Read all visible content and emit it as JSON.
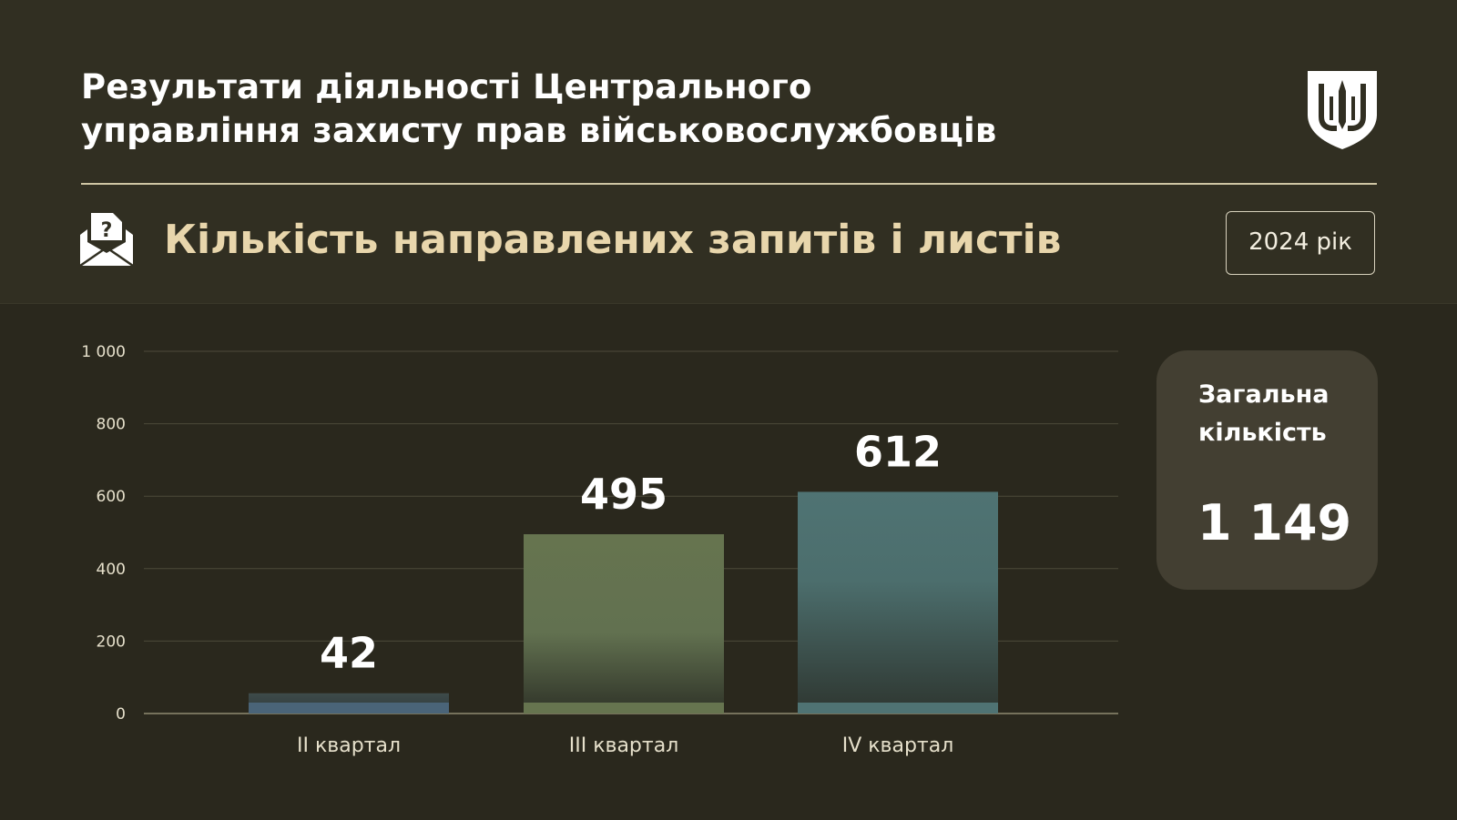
{
  "header": {
    "title_line1": "Результати діяльності Центрального",
    "title_line2": "управління захисту прав військовослужбовців",
    "subtitle": "Кількість направлених запитів і листів",
    "year": "2024 рік",
    "emblem_icon": "trident-shield-icon",
    "subtitle_icon": "envelope-question-icon"
  },
  "summary": {
    "label": "Загальна кількість",
    "value": "1 149"
  },
  "chart_data": {
    "type": "bar",
    "categories": [
      "II квартал",
      "III квартал",
      "IV квартал"
    ],
    "values": [
      42,
      495,
      612
    ],
    "value_labels": [
      "42",
      "495",
      "612"
    ],
    "ylim": [
      0,
      1000
    ],
    "yticks": [
      0,
      200,
      400,
      600,
      800,
      1000
    ],
    "ytick_labels": [
      "0",
      "200",
      "400",
      "600",
      "800",
      "1 000"
    ],
    "grid": true,
    "colors": [
      "#4a6478",
      "#66744f",
      "#4f7373"
    ]
  },
  "colors": {
    "background": "#2a281d",
    "header_background": "#312f22",
    "accent_text": "#e8d6ac",
    "card_background": "#433f32"
  }
}
